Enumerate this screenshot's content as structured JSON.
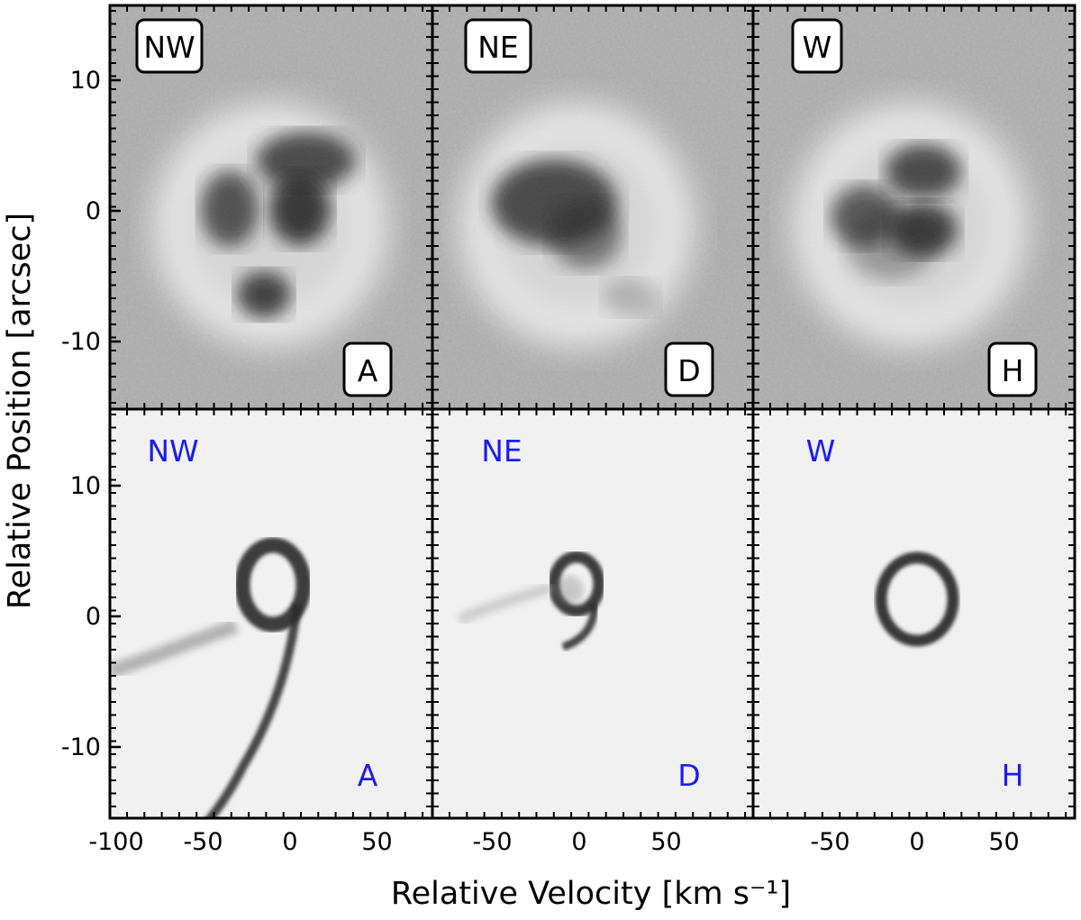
{
  "chart_data": {
    "type": "heatmap",
    "xlabel": "Relative Velocity [km s⁻¹]",
    "ylabel": "Relative Position [arcsec]",
    "rows": [
      {
        "row": "top",
        "panels": [
          {
            "corner_label": "NW",
            "panel_label": "A",
            "xlim": [
              -100,
              0
            ]
          },
          {
            "corner_label": "NE",
            "panel_label": "D",
            "xlim": [
              -85,
              85
            ]
          },
          {
            "corner_label": "W",
            "panel_label": "H",
            "xlim": [
              -85,
              85
            ]
          }
        ]
      },
      {
        "row": "bottom",
        "panels": [
          {
            "corner_label": "NW",
            "panel_label": "A",
            "xlim": [
              -100,
              85
            ]
          },
          {
            "corner_label": "NE",
            "panel_label": "D",
            "xlim": [
              -85,
              85
            ]
          },
          {
            "corner_label": "W",
            "panel_label": "H",
            "xlim": [
              -85,
              85
            ]
          }
        ]
      }
    ],
    "ylim": [
      -15.5,
      15.5
    ],
    "x_ticks": {
      "left": [
        "-100",
        "-50",
        "0",
        "50"
      ],
      "middle": [
        "-50",
        "0",
        "50"
      ],
      "right": [
        "-50",
        "0",
        "50"
      ]
    },
    "x_tick_values": {
      "left": [
        -100,
        -50,
        0,
        50
      ],
      "middle": [
        -50,
        0,
        50
      ],
      "right": [
        -50,
        0,
        50
      ]
    },
    "y_ticks": [
      "10",
      "0",
      "-10"
    ],
    "y_tick_values": [
      10,
      0,
      -10
    ],
    "grid": false,
    "colormap": "greyscale (dark = bright emission)",
    "label_color_bottom": "#1c1cf0"
  }
}
